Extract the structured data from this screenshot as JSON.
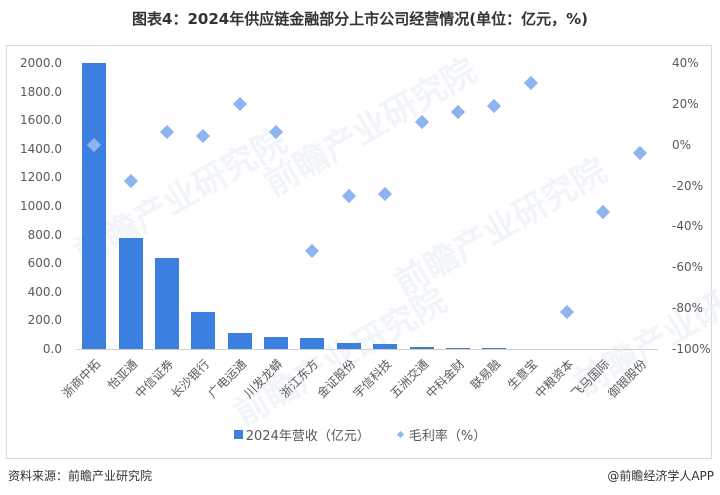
{
  "title": "图表4：2024年供应链金融部分上市公司经营情况(单位：亿元，%)",
  "chart_data": {
    "type": "bar",
    "title": "图表4：2024年供应链金融部分上市公司经营情况(单位：亿元，%)",
    "categories": [
      "浙商中拓",
      "怡亚通",
      "中信证券",
      "长沙银行",
      "广电运通",
      "川发龙蟒",
      "浙江东方",
      "金证股份",
      "宇信科技",
      "五洲交通",
      "中科金财",
      "联易融",
      "生意宝",
      "中粮资本",
      "飞马国际",
      "御银股份"
    ],
    "series": [
      {
        "name": "2024年营收（亿元）",
        "type": "bar",
        "axis": "left",
        "color": "#3b80e0",
        "values": [
          2000,
          773,
          634,
          258,
          111,
          84,
          77,
          45,
          38,
          15,
          10,
          8,
          0.5,
          0.3,
          0.2,
          0.1
        ]
      },
      {
        "name": "毛利率（%）",
        "type": "scatter",
        "axis": "right",
        "marker": "diamond",
        "color": "#8db4ef",
        "values": [
          0,
          -18,
          6,
          4.5,
          20,
          6,
          -52,
          -25,
          -24,
          11,
          16,
          19,
          30,
          -82,
          -33,
          -4
        ]
      }
    ],
    "yaxis_left": {
      "min": 0,
      "max": 2000,
      "step": 200,
      "ticks": [
        "2000.0",
        "1800.0",
        "1600.0",
        "1400.0",
        "1200.0",
        "1000.0",
        "800.0",
        "600.0",
        "400.0",
        "200.0",
        "0.0"
      ]
    },
    "yaxis_right": {
      "min": -100,
      "max": 40,
      "step": 20,
      "ticks": [
        "40%",
        "20%",
        "0%",
        "-20%",
        "-40%",
        "-60%",
        "-80%",
        "-100%"
      ]
    },
    "xlabel": "",
    "ylabel": "",
    "grid": false,
    "legend_position": "bottom"
  },
  "legend": {
    "bar_label": "2024年营收（亿元）",
    "scatter_label": "毛利率（%）"
  },
  "footer": {
    "source": "资料来源：前瞻产业研究院",
    "credit": "@前瞻经济学人APP"
  },
  "watermark": "前瞻产业研究院"
}
